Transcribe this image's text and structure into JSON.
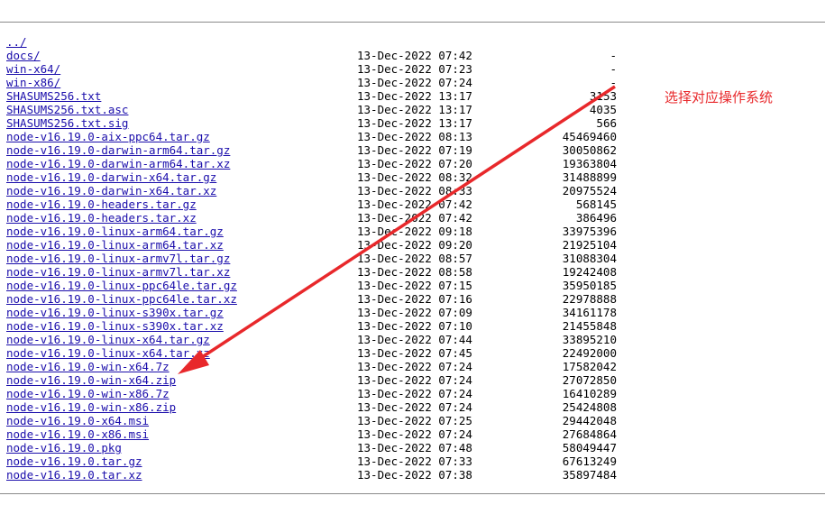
{
  "parent_link": "../",
  "entries": [
    {
      "name": "docs/",
      "date": "13-Dec-2022 07:42",
      "size": "-"
    },
    {
      "name": "win-x64/",
      "date": "13-Dec-2022 07:23",
      "size": "-"
    },
    {
      "name": "win-x86/",
      "date": "13-Dec-2022 07:24",
      "size": "-"
    },
    {
      "name": "SHASUMS256.txt",
      "date": "13-Dec-2022 13:17",
      "size": "3153"
    },
    {
      "name": "SHASUMS256.txt.asc",
      "date": "13-Dec-2022 13:17",
      "size": "4035"
    },
    {
      "name": "SHASUMS256.txt.sig",
      "date": "13-Dec-2022 13:17",
      "size": "566"
    },
    {
      "name": "node-v16.19.0-aix-ppc64.tar.gz",
      "date": "13-Dec-2022 08:13",
      "size": "45469460"
    },
    {
      "name": "node-v16.19.0-darwin-arm64.tar.gz",
      "date": "13-Dec-2022 07:19",
      "size": "30050862"
    },
    {
      "name": "node-v16.19.0-darwin-arm64.tar.xz",
      "date": "13-Dec-2022 07:20",
      "size": "19363804"
    },
    {
      "name": "node-v16.19.0-darwin-x64.tar.gz",
      "date": "13-Dec-2022 08:32",
      "size": "31488899"
    },
    {
      "name": "node-v16.19.0-darwin-x64.tar.xz",
      "date": "13-Dec-2022 08:33",
      "size": "20975524"
    },
    {
      "name": "node-v16.19.0-headers.tar.gz",
      "date": "13-Dec-2022 07:42",
      "size": "568145"
    },
    {
      "name": "node-v16.19.0-headers.tar.xz",
      "date": "13-Dec-2022 07:42",
      "size": "386496"
    },
    {
      "name": "node-v16.19.0-linux-arm64.tar.gz",
      "date": "13-Dec-2022 09:18",
      "size": "33975396"
    },
    {
      "name": "node-v16.19.0-linux-arm64.tar.xz",
      "date": "13-Dec-2022 09:20",
      "size": "21925104"
    },
    {
      "name": "node-v16.19.0-linux-armv7l.tar.gz",
      "date": "13-Dec-2022 08:57",
      "size": "31088304"
    },
    {
      "name": "node-v16.19.0-linux-armv7l.tar.xz",
      "date": "13-Dec-2022 08:58",
      "size": "19242408"
    },
    {
      "name": "node-v16.19.0-linux-ppc64le.tar.gz",
      "date": "13-Dec-2022 07:15",
      "size": "35950185"
    },
    {
      "name": "node-v16.19.0-linux-ppc64le.tar.xz",
      "date": "13-Dec-2022 07:16",
      "size": "22978888"
    },
    {
      "name": "node-v16.19.0-linux-s390x.tar.gz",
      "date": "13-Dec-2022 07:09",
      "size": "34161178"
    },
    {
      "name": "node-v16.19.0-linux-s390x.tar.xz",
      "date": "13-Dec-2022 07:10",
      "size": "21455848"
    },
    {
      "name": "node-v16.19.0-linux-x64.tar.gz",
      "date": "13-Dec-2022 07:44",
      "size": "33895210"
    },
    {
      "name": "node-v16.19.0-linux-x64.tar.xz",
      "date": "13-Dec-2022 07:45",
      "size": "22492000"
    },
    {
      "name": "node-v16.19.0-win-x64.7z",
      "date": "13-Dec-2022 07:24",
      "size": "17582042"
    },
    {
      "name": "node-v16.19.0-win-x64.zip",
      "date": "13-Dec-2022 07:24",
      "size": "27072850"
    },
    {
      "name": "node-v16.19.0-win-x86.7z",
      "date": "13-Dec-2022 07:24",
      "size": "16410289"
    },
    {
      "name": "node-v16.19.0-win-x86.zip",
      "date": "13-Dec-2022 07:24",
      "size": "25424808"
    },
    {
      "name": "node-v16.19.0-x64.msi",
      "date": "13-Dec-2022 07:25",
      "size": "29442048"
    },
    {
      "name": "node-v16.19.0-x86.msi",
      "date": "13-Dec-2022 07:24",
      "size": "27684864"
    },
    {
      "name": "node-v16.19.0.pkg",
      "date": "13-Dec-2022 07:48",
      "size": "58049447"
    },
    {
      "name": "node-v16.19.0.tar.gz",
      "date": "13-Dec-2022 07:33",
      "size": "67613249"
    },
    {
      "name": "node-v16.19.0.tar.xz",
      "date": "13-Dec-2022 07:38",
      "size": "35897484"
    }
  ],
  "annotation": {
    "text": "选择对应操作系统",
    "color": "#e8282b"
  },
  "colors": {
    "link": "#1a0dab",
    "rule": "#8a8a8a"
  }
}
